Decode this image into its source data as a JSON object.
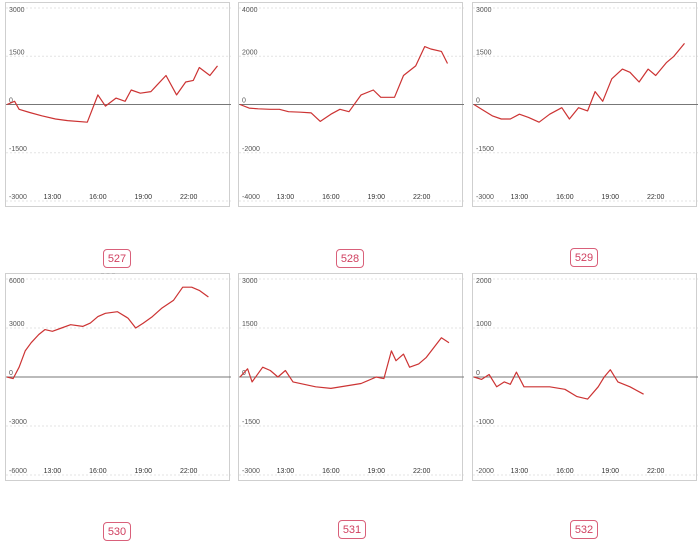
{
  "chart_data": [
    {
      "type": "line",
      "ylim": [
        -3000,
        3000
      ],
      "yticks": [
        3000,
        1500,
        0,
        -1500,
        -3000
      ],
      "xticks": [
        "13:00",
        "16:00",
        "19:00",
        "22:00"
      ],
      "xlim": [
        10,
        24
      ],
      "x": [
        10,
        10.5,
        10.8,
        11.5,
        12.3,
        13.2,
        14,
        15.3,
        16,
        16.5,
        17.2,
        17.8,
        18.2,
        18.8,
        19.5,
        19.9,
        20.5,
        21.2,
        21.8,
        22.3,
        22.7,
        23.4,
        23.9
      ],
      "values": [
        0,
        100,
        -150,
        -250,
        -350,
        -450,
        -500,
        -550,
        300,
        -50,
        200,
        100,
        450,
        350,
        400,
        600,
        900,
        300,
        700,
        750,
        1150,
        900,
        1200
      ],
      "color": "#cc3333"
    },
    {
      "type": "line",
      "ylim": [
        -4000,
        4000
      ],
      "yticks": [
        4000,
        2000,
        0,
        -2000,
        -4000
      ],
      "xticks": [
        "13:00",
        "16:00",
        "19:00",
        "22:00"
      ],
      "xlim": [
        10,
        24
      ],
      "x": [
        10,
        10.6,
        11.2,
        12,
        12.6,
        13.2,
        14,
        14.7,
        15.3,
        16,
        16.6,
        17.2,
        18,
        18.8,
        19.3,
        20.2,
        20.8,
        21.6,
        22.2,
        22.6,
        23.3,
        23.7
      ],
      "values": [
        0,
        -150,
        -180,
        -200,
        -200,
        -300,
        -320,
        -350,
        -700,
        -400,
        -200,
        -300,
        400,
        600,
        300,
        300,
        1200,
        1600,
        2400,
        2300,
        2200,
        1700
      ],
      "color": "#cc3333"
    },
    {
      "type": "line",
      "ylim": [
        -3000,
        3000
      ],
      "yticks": [
        3000,
        1500,
        0,
        -1500,
        -3000
      ],
      "xticks": [
        "13:00",
        "16:00",
        "19:00",
        "22:00"
      ],
      "xlim": [
        10,
        24
      ],
      "x": [
        10,
        10.5,
        11.2,
        11.8,
        12.4,
        13,
        13.6,
        14.3,
        15,
        15.8,
        16.3,
        16.9,
        17.5,
        18,
        18.5,
        19.1,
        19.8,
        20.3,
        20.9,
        21.5,
        22,
        22.7,
        23.2,
        23.9
      ],
      "values": [
        0,
        -150,
        -350,
        -450,
        -450,
        -300,
        -400,
        -550,
        -300,
        -100,
        -450,
        -100,
        -200,
        400,
        100,
        800,
        1100,
        1000,
        700,
        1100,
        900,
        1300,
        1500,
        1900
      ],
      "color": "#cc3333"
    },
    {
      "type": "line",
      "ylim": [
        -6000,
        6000
      ],
      "yticks": [
        6000,
        3000,
        0,
        -3000,
        -6000
      ],
      "xticks": [
        "13:00",
        "16:00",
        "19:00",
        "22:00"
      ],
      "xlim": [
        10,
        24
      ],
      "x": [
        10,
        10.4,
        10.8,
        11.2,
        11.6,
        12.1,
        12.5,
        13,
        13.6,
        14.2,
        15,
        15.5,
        16,
        16.5,
        17.3,
        18,
        18.5,
        19,
        19.6,
        20.2,
        21,
        21.6,
        22.2,
        22.7,
        23.3
      ],
      "values": [
        0,
        -100,
        600,
        1600,
        2100,
        2600,
        2900,
        2800,
        3000,
        3200,
        3100,
        3300,
        3700,
        3900,
        4000,
        3600,
        3000,
        3300,
        3700,
        4200,
        4700,
        5500,
        5500,
        5300,
        4900
      ],
      "color": "#cc3333"
    },
    {
      "type": "line",
      "ylim": [
        -3000,
        3000
      ],
      "yticks": [
        3000,
        1500,
        0,
        -1500,
        -3000
      ],
      "xticks": [
        "13:00",
        "16:00",
        "19:00",
        "22:00"
      ],
      "xlim": [
        10,
        24
      ],
      "x": [
        10,
        10.5,
        10.8,
        11.5,
        12,
        12.5,
        13,
        13.5,
        14.5,
        15,
        16,
        18,
        19,
        19.5,
        20,
        20.3,
        20.8,
        21.2,
        21.8,
        22.3,
        22.8,
        23.3,
        23.8
      ],
      "values": [
        0,
        250,
        -150,
        300,
        200,
        0,
        200,
        -150,
        -250,
        -300,
        -350,
        -200,
        0,
        -50,
        800,
        500,
        700,
        300,
        400,
        600,
        900,
        1200,
        1050
      ],
      "color": "#cc3333"
    },
    {
      "type": "line",
      "ylim": [
        -2000,
        2000
      ],
      "yticks": [
        2000,
        1000,
        0,
        -1000,
        -2000
      ],
      "xticks": [
        "13:00",
        "16:00",
        "19:00",
        "22:00"
      ],
      "xlim": [
        10,
        24
      ],
      "x": [
        10,
        10.5,
        11,
        11.5,
        12,
        12.4,
        12.8,
        13.3,
        14,
        15,
        16,
        16.8,
        17.5,
        18.2,
        18.6,
        19,
        19.5,
        20.3,
        21.2
      ],
      "values": [
        0,
        -50,
        50,
        -200,
        -100,
        -150,
        100,
        -200,
        -200,
        -200,
        -250,
        -400,
        -450,
        -200,
        0,
        150,
        -100,
        -200,
        -350
      ],
      "color": "#cc3333"
    }
  ],
  "labels": [
    "527",
    "528",
    "529",
    "530",
    "531",
    "532"
  ]
}
